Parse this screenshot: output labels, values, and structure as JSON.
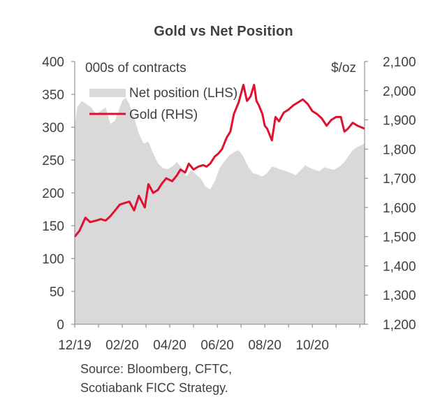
{
  "chart_data": {
    "type": "area",
    "title": "Gold  vs Net Position",
    "left_axis_label": "000s of contracts",
    "right_axis_label": "$/oz",
    "left_ylim": [
      0,
      400
    ],
    "right_ylim": [
      1200,
      2100
    ],
    "left_ticks": [
      "0",
      "50",
      "100",
      "150",
      "200",
      "250",
      "300",
      "350",
      "400"
    ],
    "right_ticks": [
      "1,200",
      "1,300",
      "1,400",
      "1,500",
      "1,600",
      "1,700",
      "1,800",
      "1,900",
      "2,000",
      "2,100"
    ],
    "x_ticks": [
      "12/19",
      "02/20",
      "04/20",
      "06/20",
      "08/20",
      "10/20"
    ],
    "x_range": [
      0,
      12.2
    ],
    "legend_position": "top-left",
    "colors": {
      "net_position": "#d9d9d9",
      "gold": "#e0102f",
      "axis": "#7f7f7f"
    },
    "series": [
      {
        "name": "Net position (LHS)",
        "axis": "left",
        "style": "area",
        "x": [
          0,
          0.1,
          0.3,
          0.5,
          0.7,
          0.9,
          1.1,
          1.3,
          1.5,
          1.7,
          1.9,
          2.0,
          2.15,
          2.3,
          2.5,
          2.7,
          2.9,
          3.1,
          3.3,
          3.5,
          3.7,
          3.9,
          4.1,
          4.3,
          4.5,
          4.7,
          4.9,
          5.1,
          5.3,
          5.5,
          5.7,
          5.9,
          6.1,
          6.3,
          6.5,
          6.7,
          6.9,
          7.1,
          7.3,
          7.5,
          7.7,
          7.9,
          8.1,
          8.3,
          8.5,
          8.7,
          8.9,
          9.1,
          9.3,
          9.5,
          9.7,
          9.9,
          10.1,
          10.3,
          10.5,
          10.7,
          10.9,
          11.1,
          11.3,
          11.5,
          11.7,
          11.9,
          12.2
        ],
        "values": [
          300,
          330,
          340,
          335,
          330,
          320,
          325,
          330,
          305,
          310,
          330,
          340,
          345,
          335,
          315,
          290,
          275,
          278,
          260,
          245,
          238,
          236,
          240,
          247,
          238,
          225,
          235,
          228,
          222,
          210,
          205,
          218,
          238,
          248,
          257,
          262,
          265,
          255,
          240,
          230,
          228,
          225,
          230,
          240,
          238,
          235,
          233,
          230,
          227,
          234,
          242,
          238,
          235,
          233,
          239,
          237,
          235,
          239,
          245,
          255,
          265,
          270,
          275
        ]
      },
      {
        "name": "Gold (RHS)",
        "axis": "right",
        "style": "line",
        "x": [
          0,
          0.2,
          0.45,
          0.65,
          0.9,
          1.1,
          1.3,
          1.5,
          1.7,
          1.9,
          2.1,
          2.3,
          2.5,
          2.7,
          2.95,
          3.1,
          3.3,
          3.5,
          3.65,
          3.85,
          4.1,
          4.3,
          4.45,
          4.65,
          4.8,
          5.0,
          5.2,
          5.4,
          5.55,
          5.7,
          5.9,
          6.05,
          6.2,
          6.4,
          6.55,
          6.7,
          6.9,
          7.1,
          7.25,
          7.4,
          7.55,
          7.65,
          7.75,
          7.9,
          8.0,
          8.1,
          8.3,
          8.45,
          8.6,
          8.8,
          9.0,
          9.2,
          9.4,
          9.6,
          9.8,
          10.0,
          10.2,
          10.4,
          10.6,
          10.8,
          11.0,
          11.2,
          11.35,
          11.5,
          11.7,
          11.9,
          12.2
        ],
        "values": [
          1500,
          1520,
          1565,
          1550,
          1555,
          1560,
          1555,
          1570,
          1590,
          1610,
          1615,
          1620,
          1590,
          1640,
          1600,
          1680,
          1650,
          1660,
          1680,
          1700,
          1690,
          1710,
          1730,
          1720,
          1750,
          1730,
          1740,
          1745,
          1740,
          1750,
          1775,
          1785,
          1800,
          1840,
          1860,
          1920,
          1960,
          2020,
          1965,
          1980,
          2020,
          1965,
          1950,
          1920,
          1880,
          1870,
          1830,
          1910,
          1895,
          1925,
          1935,
          1950,
          1960,
          1970,
          1955,
          1930,
          1920,
          1905,
          1880,
          1900,
          1910,
          1910,
          1860,
          1870,
          1890,
          1880,
          1870
        ]
      }
    ]
  },
  "source": {
    "line1": "Source: Bloomberg, CFTC,",
    "line2": "Scotiabank FICC  Strategy."
  }
}
